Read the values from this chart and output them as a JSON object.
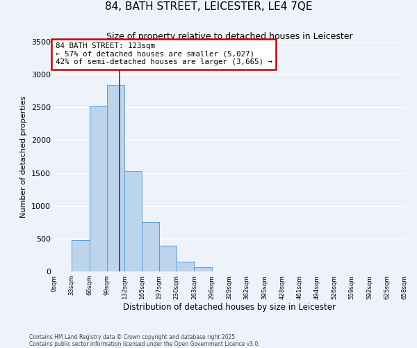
{
  "title": "84, BATH STREET, LEICESTER, LE4 7QE",
  "subtitle": "Size of property relative to detached houses in Leicester",
  "xlabel": "Distribution of detached houses by size in Leicester",
  "ylabel": "Number of detached properties",
  "bar_edges": [
    0,
    33,
    66,
    99,
    132,
    165,
    197,
    230,
    263,
    296,
    329,
    362,
    395,
    428,
    461,
    494,
    526,
    559,
    592,
    625,
    658
  ],
  "bar_heights": [
    0,
    480,
    2520,
    2840,
    1530,
    750,
    390,
    145,
    60,
    0,
    0,
    0,
    0,
    0,
    0,
    0,
    0,
    0,
    0,
    0
  ],
  "bar_color": "#bcd4ec",
  "bar_edge_color": "#5b9bd5",
  "property_line_x": 123,
  "annotation_title": "84 BATH STREET: 123sqm",
  "annotation_line1": "← 57% of detached houses are smaller (5,027)",
  "annotation_line2": "42% of semi-detached houses are larger (3,665) →",
  "annotation_box_color": "#ffffff",
  "annotation_box_edge_color": "#cc0000",
  "vline_color": "#cc0000",
  "ylim": [
    0,
    3500
  ],
  "xlim": [
    0,
    658
  ],
  "yticks": [
    0,
    500,
    1000,
    1500,
    2000,
    2500,
    3000,
    3500
  ],
  "xtick_labels": [
    "0sqm",
    "33sqm",
    "66sqm",
    "99sqm",
    "132sqm",
    "165sqm",
    "197sqm",
    "230sqm",
    "263sqm",
    "296sqm",
    "329sqm",
    "362sqm",
    "395sqm",
    "428sqm",
    "461sqm",
    "494sqm",
    "526sqm",
    "559sqm",
    "592sqm",
    "625sqm",
    "658sqm"
  ],
  "xtick_positions": [
    0,
    33,
    66,
    99,
    132,
    165,
    197,
    230,
    263,
    296,
    329,
    362,
    395,
    428,
    461,
    494,
    526,
    559,
    592,
    625,
    658
  ],
  "background_color": "#eef2fb",
  "grid_color": "#ffffff",
  "footnote1": "Contains HM Land Registry data © Crown copyright and database right 2025.",
  "footnote2": "Contains public sector information licensed under the Open Government Licence v3.0."
}
